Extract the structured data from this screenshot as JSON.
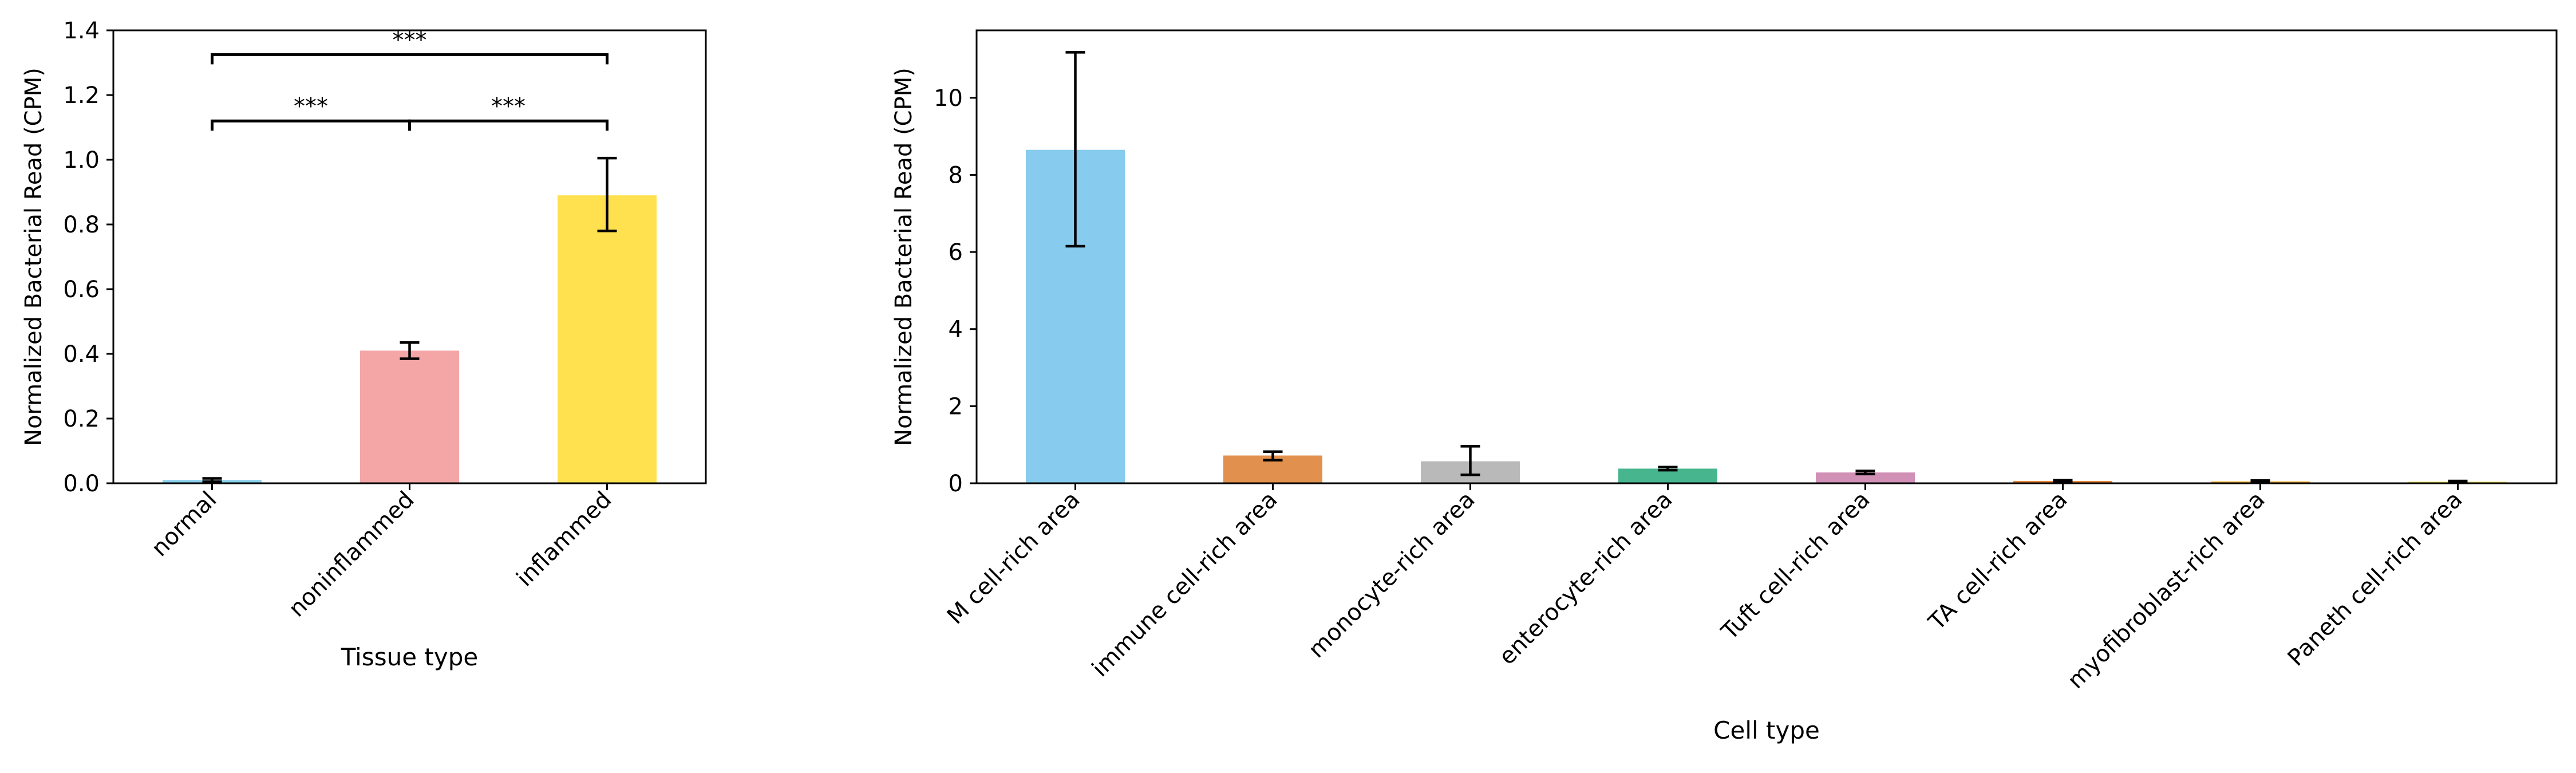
{
  "chart_data": [
    {
      "type": "bar",
      "xlabel": "Tissue type",
      "ylabel": "Normalized Bacterial Read (CPM)",
      "categories": [
        "normal",
        "noninflammed",
        "inflammed"
      ],
      "values": [
        0.01,
        0.41,
        0.89
      ],
      "error_low": [
        0.005,
        0.385,
        0.78
      ],
      "error_high": [
        0.015,
        0.435,
        1.005
      ],
      "colors": [
        "#87CEEB",
        "#F4A6A6",
        "#FFE14F"
      ],
      "ylim": [
        0,
        1.4
      ],
      "yticks": [
        "0.0",
        "0.2",
        "0.4",
        "0.6",
        "0.8",
        "1.0",
        "1.2",
        "1.4"
      ],
      "ytick_values": [
        0,
        0.2,
        0.4,
        0.6,
        0.8,
        1.0,
        1.2,
        1.4
      ],
      "significance": [
        {
          "from": 0,
          "to": 2,
          "height": 1.325,
          "label": "***"
        },
        {
          "from": 0,
          "to": 1,
          "height": 1.12,
          "label": "***"
        },
        {
          "from": 1,
          "to": 2,
          "height": 1.12,
          "label": "***"
        }
      ]
    },
    {
      "type": "bar",
      "xlabel": "Cell type",
      "ylabel": "Normalized Bacterial Read (CPM)",
      "categories": [
        "M cell-rich area",
        "immune cell-rich area",
        "monocyte-rich area",
        "enterocyte-rich area",
        "Tuft cell-rich area",
        "TA cell-rich area",
        "myofibroblast-rich area",
        "Paneth cell-rich area"
      ],
      "values": [
        8.65,
        0.72,
        0.57,
        0.38,
        0.28,
        0.06,
        0.05,
        0.04
      ],
      "error_low": [
        6.15,
        0.6,
        0.22,
        0.34,
        0.24,
        0.04,
        0.03,
        0.02
      ],
      "error_high": [
        11.18,
        0.82,
        0.96,
        0.42,
        0.32,
        0.08,
        0.07,
        0.06
      ],
      "colors": [
        "#87CBEE",
        "#E1904E",
        "#B9B9B9",
        "#47B58E",
        "#D190B6",
        "#E8873A",
        "#F2B03A",
        "#E8DD4A"
      ],
      "ylim": [
        0,
        11.75
      ],
      "yticks": [
        "0",
        "2",
        "4",
        "6",
        "8",
        "10"
      ],
      "ytick_values": [
        0,
        2,
        4,
        6,
        8,
        10
      ]
    }
  ]
}
